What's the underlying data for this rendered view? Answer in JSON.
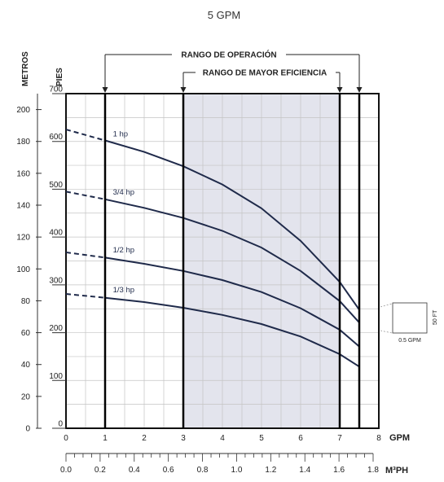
{
  "chart_data": {
    "type": "line",
    "title": "5 GPM",
    "x_unit_label": "GPM",
    "x_alt_unit_label": "M³PH",
    "y_left_label": "METROS",
    "y_right_label": "PIES",
    "xlim": [
      0,
      8
    ],
    "ylim_feet": [
      0,
      700
    ],
    "ylim_meters": [
      0,
      210
    ],
    "x_ticks": [
      "0",
      "1",
      "2",
      "3",
      "4",
      "5",
      "6",
      "7",
      "8"
    ],
    "x_alt_ticks": [
      "0.0",
      "0.2",
      "0.4",
      "0.6",
      "0.8",
      "1.0",
      "1.2",
      "1.4",
      "1.6",
      "1.8"
    ],
    "y_feet_ticks": [
      "0",
      "100",
      "200",
      "300",
      "400",
      "500",
      "600",
      "700"
    ],
    "y_meter_ticks": [
      "0",
      "20",
      "40",
      "60",
      "80",
      "100",
      "120",
      "140",
      "160",
      "180",
      "200"
    ],
    "grid": true,
    "operating_range": {
      "label": "RANGO DE OPERACIÓN",
      "from": 1,
      "to": 7.5
    },
    "efficiency_range": {
      "label": "RANGO DE MAYOR EFICIENCIA",
      "from": 3,
      "to": 7
    },
    "series": [
      {
        "name": "1 hp",
        "x": [
          0,
          1,
          2,
          3,
          4,
          5,
          6,
          7,
          7.5
        ],
        "y": [
          625,
          602,
          578,
          548,
          510,
          460,
          392,
          306,
          248
        ]
      },
      {
        "name": "3/4 hp",
        "x": [
          0,
          1,
          2,
          3,
          4,
          5,
          6,
          7,
          7.5
        ],
        "y": [
          495,
          479,
          461,
          440,
          413,
          378,
          329,
          266,
          221
        ]
      },
      {
        "name": "1/2 hp",
        "x": [
          0,
          1,
          2,
          3,
          4,
          5,
          6,
          7,
          7.5
        ],
        "y": [
          368,
          357,
          344,
          329,
          310,
          285,
          251,
          206,
          171
        ]
      },
      {
        "name": "1/3 hp",
        "x": [
          0,
          1,
          2,
          3,
          4,
          5,
          6,
          7,
          7.5
        ],
        "y": [
          281,
          273,
          264,
          252,
          237,
          218,
          192,
          155,
          129
        ]
      }
    ],
    "scale_key": {
      "vertical": "50 FT",
      "horizontal": "0.5 GPM"
    }
  }
}
